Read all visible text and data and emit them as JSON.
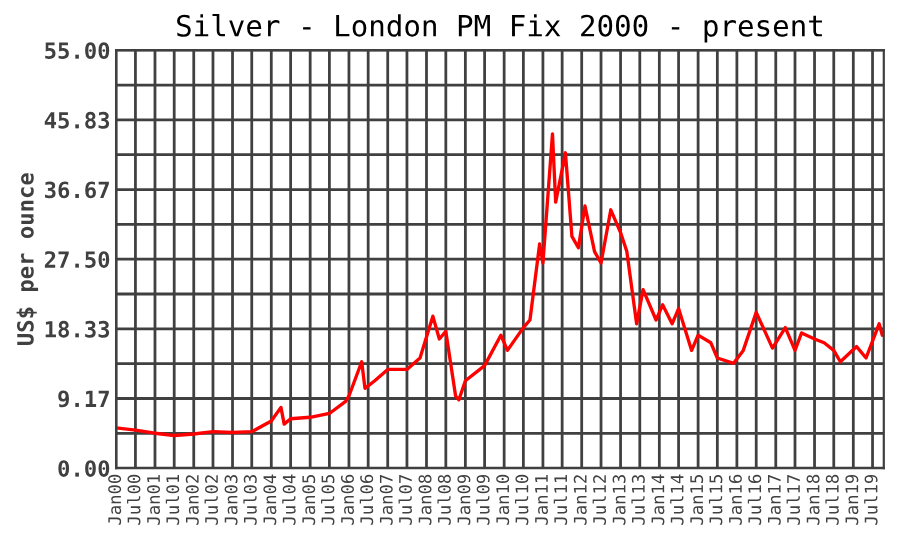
{
  "chart_data": {
    "type": "line",
    "title": "Silver - London PM Fix 2000 - present",
    "ylabel": "US$ per ounce",
    "x": [
      "2000-01",
      "2000-07",
      "2001-01",
      "2001-07",
      "2002-01",
      "2002-07",
      "2003-01",
      "2003-07",
      "2004-01",
      "2004-04",
      "2004-05",
      "2004-07",
      "2005-01",
      "2005-07",
      "2005-12",
      "2006-01",
      "2006-05",
      "2006-06",
      "2006-09",
      "2007-01",
      "2007-07",
      "2007-11",
      "2008-03",
      "2008-05",
      "2008-07",
      "2008-10",
      "2008-11",
      "2009-01",
      "2009-07",
      "2009-12",
      "2010-02",
      "2010-07",
      "2010-09",
      "2010-12",
      "2011-01",
      "2011-04",
      "2011-05",
      "2011-08",
      "2011-10",
      "2011-12",
      "2012-02",
      "2012-05",
      "2012-07",
      "2012-10",
      "2013-01",
      "2013-03",
      "2013-06",
      "2013-08",
      "2013-12",
      "2014-02",
      "2014-05",
      "2014-07",
      "2014-11",
      "2015-01",
      "2015-05",
      "2015-07",
      "2015-12",
      "2016-03",
      "2016-07",
      "2016-12",
      "2017-04",
      "2017-07",
      "2017-09",
      "2018-01",
      "2018-04",
      "2018-07",
      "2018-09",
      "2019-02",
      "2019-05",
      "2019-09",
      "2019-10"
    ],
    "series": [
      {
        "color": "#ff0000",
        "values": [
          5.3,
          5.0,
          4.6,
          4.3,
          4.5,
          4.8,
          4.7,
          4.8,
          6.2,
          8.0,
          5.8,
          6.5,
          6.7,
          7.2,
          8.8,
          9.5,
          14.0,
          10.5,
          11.5,
          13.0,
          13.0,
          14.5,
          20.0,
          17.0,
          18.0,
          9.5,
          9.0,
          11.5,
          13.5,
          17.5,
          15.5,
          18.5,
          19.5,
          29.5,
          27.0,
          44.0,
          35.0,
          41.5,
          30.5,
          29.0,
          34.5,
          28.5,
          27.0,
          34.0,
          31.0,
          28.5,
          19.0,
          23.5,
          19.5,
          21.5,
          19.0,
          21.0,
          15.5,
          17.5,
          16.5,
          14.5,
          13.8,
          15.5,
          20.5,
          15.8,
          18.5,
          15.5,
          17.8,
          17.0,
          16.5,
          15.5,
          14.0,
          16.0,
          14.5,
          19.0,
          17.5
        ]
      }
    ],
    "xlim": [
      "2000-01",
      "2019-10-15"
    ],
    "xticks": [
      {
        "value": "2000-01",
        "label": "Jan00"
      },
      {
        "value": "2000-07",
        "label": "Jul00"
      },
      {
        "value": "2001-01",
        "label": "Jan01"
      },
      {
        "value": "2001-07",
        "label": "Jul01"
      },
      {
        "value": "2002-01",
        "label": "Jan02"
      },
      {
        "value": "2002-07",
        "label": "Jul02"
      },
      {
        "value": "2003-01",
        "label": "Jan03"
      },
      {
        "value": "2003-07",
        "label": "Jul03"
      },
      {
        "value": "2004-01",
        "label": "Jan04"
      },
      {
        "value": "2004-07",
        "label": "Jul04"
      },
      {
        "value": "2005-01",
        "label": "Jan05"
      },
      {
        "value": "2005-07",
        "label": "Jul05"
      },
      {
        "value": "2006-01",
        "label": "Jan06"
      },
      {
        "value": "2006-07",
        "label": "Jul06"
      },
      {
        "value": "2007-01",
        "label": "Jan07"
      },
      {
        "value": "2007-07",
        "label": "Jul07"
      },
      {
        "value": "2008-01",
        "label": "Jan08"
      },
      {
        "value": "2008-07",
        "label": "Jul08"
      },
      {
        "value": "2009-01",
        "label": "Jan09"
      },
      {
        "value": "2009-07",
        "label": "Jul09"
      },
      {
        "value": "2010-01",
        "label": "Jan10"
      },
      {
        "value": "2010-07",
        "label": "Jul10"
      },
      {
        "value": "2011-01",
        "label": "Jan11"
      },
      {
        "value": "2011-07",
        "label": "Jul11"
      },
      {
        "value": "2012-01",
        "label": "Jan12"
      },
      {
        "value": "2012-07",
        "label": "Jul12"
      },
      {
        "value": "2013-01",
        "label": "Jan13"
      },
      {
        "value": "2013-07",
        "label": "Jul13"
      },
      {
        "value": "2014-01",
        "label": "Jan14"
      },
      {
        "value": "2014-07",
        "label": "Jul14"
      },
      {
        "value": "2015-01",
        "label": "Jan15"
      },
      {
        "value": "2015-07",
        "label": "Jul15"
      },
      {
        "value": "2016-01",
        "label": "Jan16"
      },
      {
        "value": "2016-07",
        "label": "Jul16"
      },
      {
        "value": "2017-01",
        "label": "Jan17"
      },
      {
        "value": "2017-07",
        "label": "Jul17"
      },
      {
        "value": "2018-01",
        "label": "Jan18"
      },
      {
        "value": "2018-07",
        "label": "Jul18"
      },
      {
        "value": "2019-01",
        "label": "Jan19"
      },
      {
        "value": "2019-07",
        "label": "Jul19"
      }
    ],
    "ylim": [
      0,
      55
    ],
    "yticks": [
      {
        "value": 0,
        "label": "0.00"
      },
      {
        "value": 4.58,
        "label": null
      },
      {
        "value": 9.17,
        "label": "9.17"
      },
      {
        "value": 13.75,
        "label": null
      },
      {
        "value": 18.33,
        "label": "18.33"
      },
      {
        "value": 22.92,
        "label": null
      },
      {
        "value": 27.5,
        "label": "27.50"
      },
      {
        "value": 32.08,
        "label": null
      },
      {
        "value": 36.67,
        "label": "36.67"
      },
      {
        "value": 41.25,
        "label": null
      },
      {
        "value": 45.83,
        "label": "45.83"
      },
      {
        "value": 50.42,
        "label": null
      },
      {
        "value": 55,
        "label": "55.00"
      }
    ],
    "grid": true
  }
}
